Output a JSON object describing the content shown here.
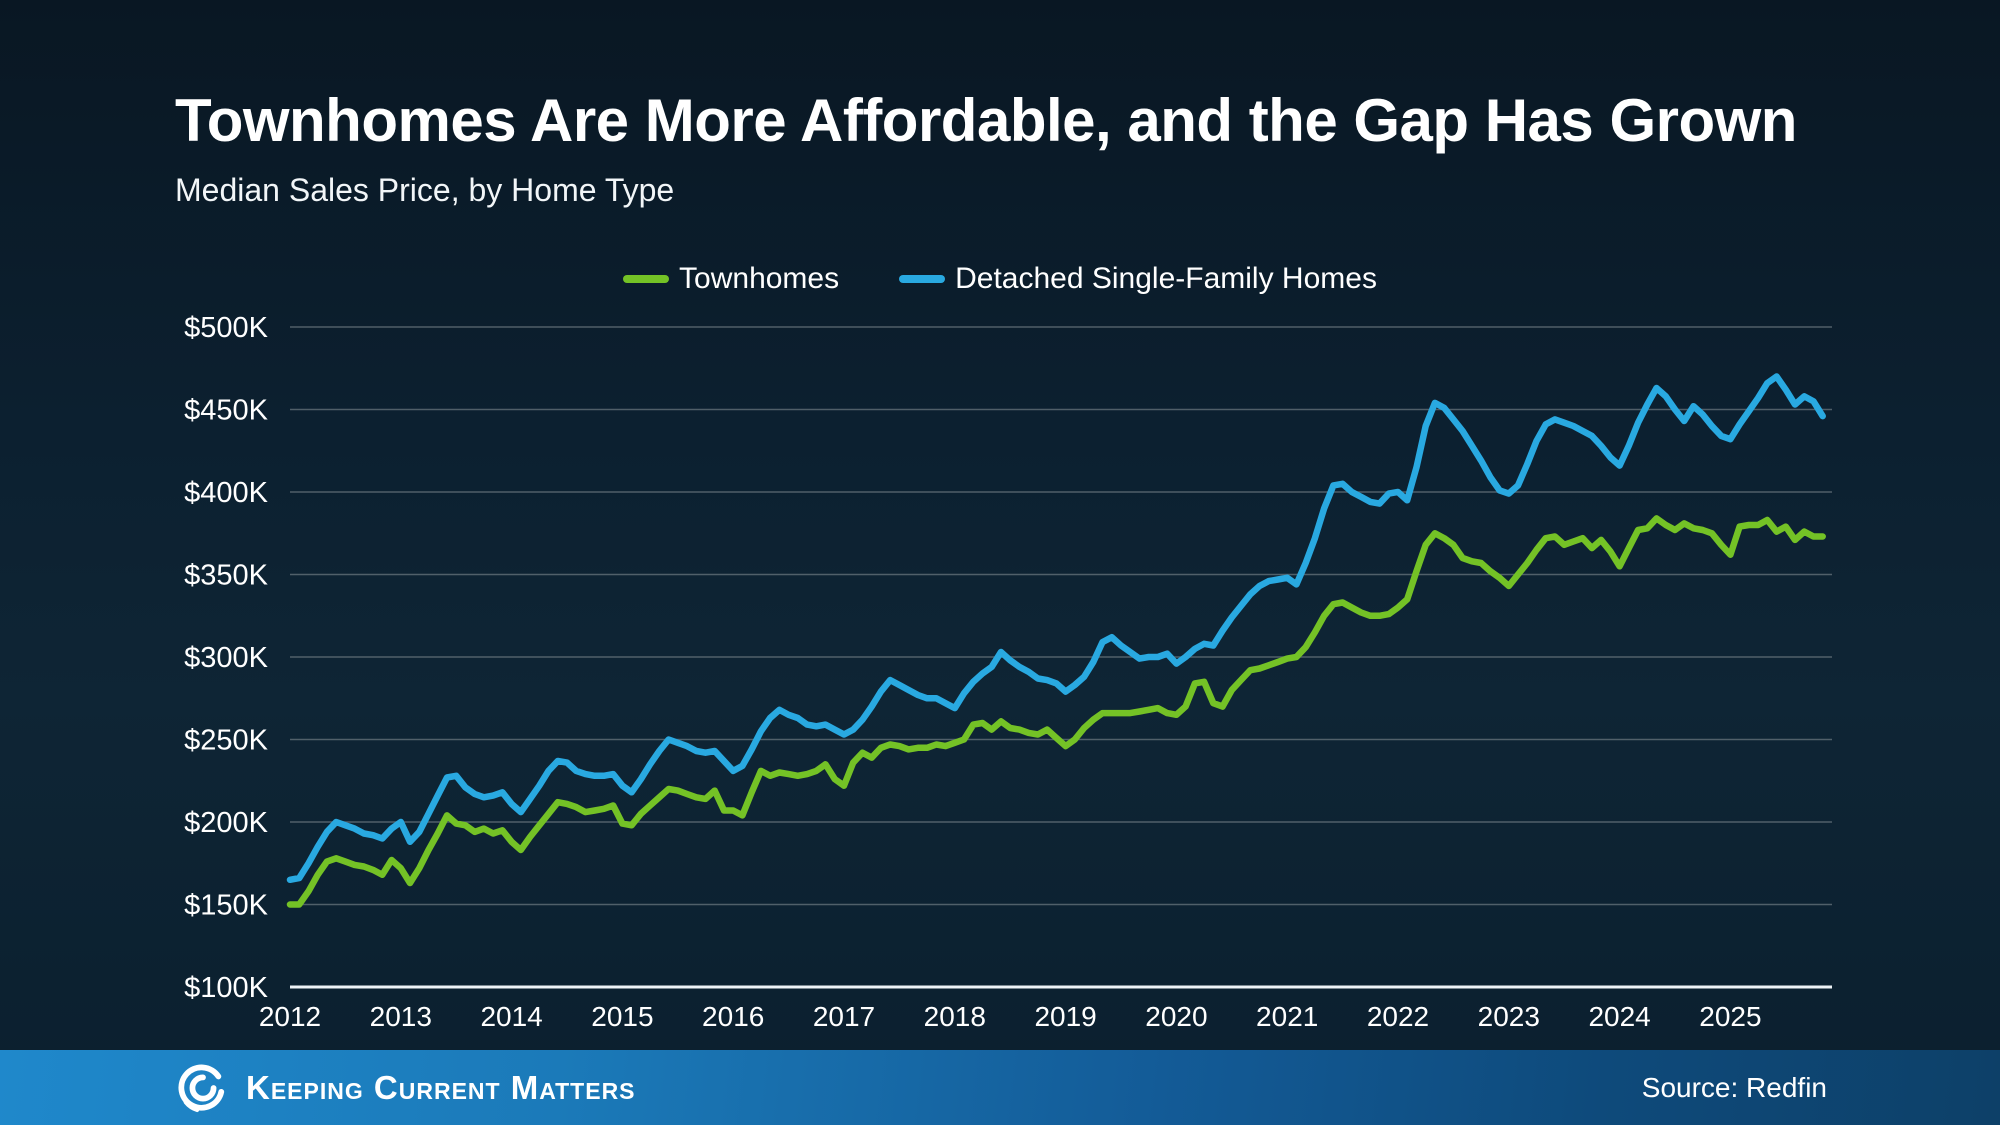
{
  "slide": {
    "title": "Townhomes Are More Affordable, and the Gap Has Grown",
    "subtitle": "Median Sales Price, by Home Type"
  },
  "footer": {
    "brand": "Keeping Current Matters",
    "source": "Source: Redfin"
  },
  "colors": {
    "background": "#0c2030",
    "townhomes_green": "#74c226",
    "detached_blue": "#29a9e1",
    "gridline_gray": "#7b868d",
    "footer_blue_left": "#1f88cb",
    "footer_blue_right": "#0d4068",
    "text_white": "#ffffff"
  },
  "chart_data": {
    "type": "line",
    "title": "Median Sales Price, by Home Type",
    "x_start": "2012-01",
    "x_interval": "monthly",
    "x_tick_labels": [
      "2012",
      "2013",
      "2014",
      "2015",
      "2016",
      "2017",
      "2018",
      "2019",
      "2020",
      "2021",
      "2022",
      "2023",
      "2024",
      "2025"
    ],
    "ylim": [
      100,
      500
    ],
    "y_ticks": [
      100,
      150,
      200,
      250,
      300,
      350,
      400,
      450,
      500
    ],
    "y_tick_labels": [
      "$100K",
      "$150K",
      "$200K",
      "$250K",
      "$300K",
      "$350K",
      "$400K",
      "$450K",
      "$500K"
    ],
    "y_unit": "USD thousands",
    "grid": "horizontal",
    "legend_position": "top",
    "series": [
      {
        "name": "Townhomes",
        "color": "#74c226",
        "values": [
          150,
          150,
          158,
          168,
          176,
          178,
          176,
          174,
          173,
          171,
          168,
          177,
          172,
          163,
          172,
          183,
          193,
          204,
          199,
          198,
          194,
          196,
          193,
          195,
          188,
          183,
          191,
          198,
          205,
          212,
          211,
          209,
          206,
          207,
          208,
          210,
          199,
          198,
          205,
          210,
          215,
          220,
          219,
          217,
          215,
          214,
          219,
          207,
          207,
          204,
          218,
          231,
          228,
          230,
          229,
          228,
          229,
          231,
          235,
          226,
          222,
          236,
          242,
          239,
          245,
          247,
          246,
          244,
          245,
          245,
          247,
          246,
          248,
          250,
          259,
          260,
          256,
          261,
          257,
          256,
          254,
          253,
          256,
          251,
          246,
          250,
          257,
          262,
          266,
          266,
          266,
          266,
          267,
          268,
          269,
          266,
          265,
          270,
          284,
          285,
          272,
          270,
          280,
          286,
          292,
          293,
          295,
          297,
          299,
          300,
          306,
          315,
          325,
          332,
          333,
          330,
          327,
          325,
          325,
          326,
          330,
          335,
          352,
          368,
          375,
          372,
          368,
          360,
          358,
          357,
          352,
          348,
          343,
          350,
          357,
          365,
          372,
          373,
          368,
          370,
          372,
          366,
          371,
          364,
          355,
          366,
          377,
          378,
          384,
          380,
          377,
          381,
          378,
          377,
          375,
          368,
          362,
          379,
          380,
          380,
          383,
          376,
          379,
          371,
          376,
          373,
          373
        ]
      },
      {
        "name": "Detached Single-Family Homes",
        "color": "#29a9e1",
        "values": [
          165,
          166,
          175,
          185,
          194,
          200,
          198,
          196,
          193,
          192,
          190,
          196,
          200,
          188,
          194,
          205,
          216,
          227,
          228,
          221,
          217,
          215,
          216,
          218,
          211,
          206,
          214,
          222,
          231,
          237,
          236,
          231,
          229,
          228,
          228,
          229,
          222,
          218,
          226,
          235,
          243,
          250,
          248,
          246,
          243,
          242,
          243,
          237,
          231,
          234,
          244,
          255,
          263,
          268,
          265,
          263,
          259,
          258,
          259,
          256,
          253,
          256,
          262,
          270,
          279,
          286,
          283,
          280,
          277,
          275,
          275,
          272,
          269,
          278,
          285,
          290,
          294,
          303,
          298,
          294,
          291,
          287,
          286,
          284,
          279,
          283,
          288,
          297,
          309,
          312,
          307,
          303,
          299,
          300,
          300,
          302,
          296,
          300,
          305,
          308,
          307,
          316,
          324,
          331,
          338,
          343,
          346,
          347,
          348,
          344,
          357,
          372,
          390,
          404,
          405,
          400,
          397,
          394,
          393,
          399,
          400,
          395,
          415,
          440,
          454,
          451,
          444,
          437,
          428,
          419,
          409,
          401,
          399,
          404,
          417,
          431,
          441,
          444,
          442,
          440,
          437,
          434,
          428,
          421,
          416,
          428,
          442,
          453,
          463,
          458,
          450,
          443,
          452,
          447,
          440,
          434,
          432,
          441,
          449,
          457,
          466,
          470,
          462,
          453,
          458,
          455,
          446
        ]
      }
    ]
  }
}
